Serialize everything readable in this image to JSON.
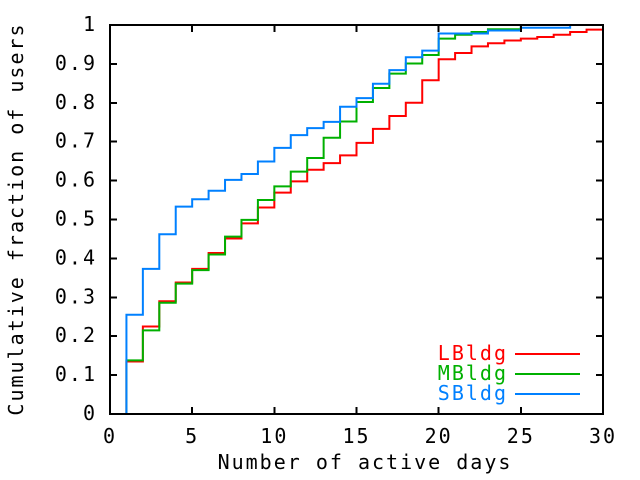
{
  "figure": {
    "background_color": "#ffffff",
    "frame_color": "#000000"
  },
  "chart_data": {
    "type": "line",
    "subtype": "step-cdf",
    "title": "",
    "xlabel": "Number of active days",
    "ylabel": "Cumulative fraction of users",
    "xlim": [
      0,
      30
    ],
    "ylim": [
      0,
      1
    ],
    "grid": false,
    "legend_position": "inside-bottom-right",
    "x_ticks": [
      0,
      5,
      10,
      15,
      20,
      25,
      30
    ],
    "x_tick_labels": [
      "0",
      "5",
      "10",
      "15",
      "20",
      "25",
      "30"
    ],
    "y_ticks": [
      0,
      0.1,
      0.2,
      0.3,
      0.4,
      0.5,
      0.6,
      0.7,
      0.8,
      0.9,
      1
    ],
    "y_tick_labels": [
      "0",
      "0.1",
      "0.2",
      "0.3",
      "0.4",
      "0.5",
      "0.6",
      "0.7",
      "0.8",
      "0.9",
      "1"
    ],
    "x": [
      1,
      2,
      3,
      4,
      5,
      6,
      7,
      8,
      9,
      10,
      11,
      12,
      13,
      14,
      15,
      16,
      17,
      18,
      19,
      20,
      21,
      22,
      23,
      24,
      25,
      26,
      27,
      28,
      29,
      30
    ],
    "series": [
      {
        "name": "LBldg",
        "color": "#ff0000",
        "values": [
          0.135,
          0.225,
          0.29,
          0.338,
          0.373,
          0.414,
          0.451,
          0.49,
          0.531,
          0.569,
          0.598,
          0.628,
          0.645,
          0.665,
          0.697,
          0.733,
          0.766,
          0.8,
          0.858,
          0.912,
          0.928,
          0.945,
          0.953,
          0.96,
          0.965,
          0.969,
          0.975,
          0.982,
          0.988,
          0.988
        ]
      },
      {
        "name": "MBldg",
        "color": "#00b000",
        "values": [
          0.138,
          0.215,
          0.286,
          0.335,
          0.37,
          0.41,
          0.456,
          0.499,
          0.55,
          0.585,
          0.623,
          0.658,
          0.71,
          0.752,
          0.802,
          0.838,
          0.875,
          0.901,
          0.923,
          0.965,
          0.975,
          0.982,
          0.989,
          0.989,
          1.0,
          1.0,
          1.0,
          1.0,
          1.0,
          1.0
        ]
      },
      {
        "name": "SBldg",
        "color": "#0080ff",
        "values": [
          0.255,
          0.373,
          0.462,
          0.533,
          0.552,
          0.574,
          0.602,
          0.617,
          0.649,
          0.684,
          0.717,
          0.735,
          0.751,
          0.79,
          0.812,
          0.849,
          0.884,
          0.917,
          0.934,
          0.978,
          0.978,
          0.978,
          0.986,
          0.986,
          0.993,
          0.993,
          0.993,
          1.0,
          1.0,
          1.0
        ]
      }
    ]
  }
}
